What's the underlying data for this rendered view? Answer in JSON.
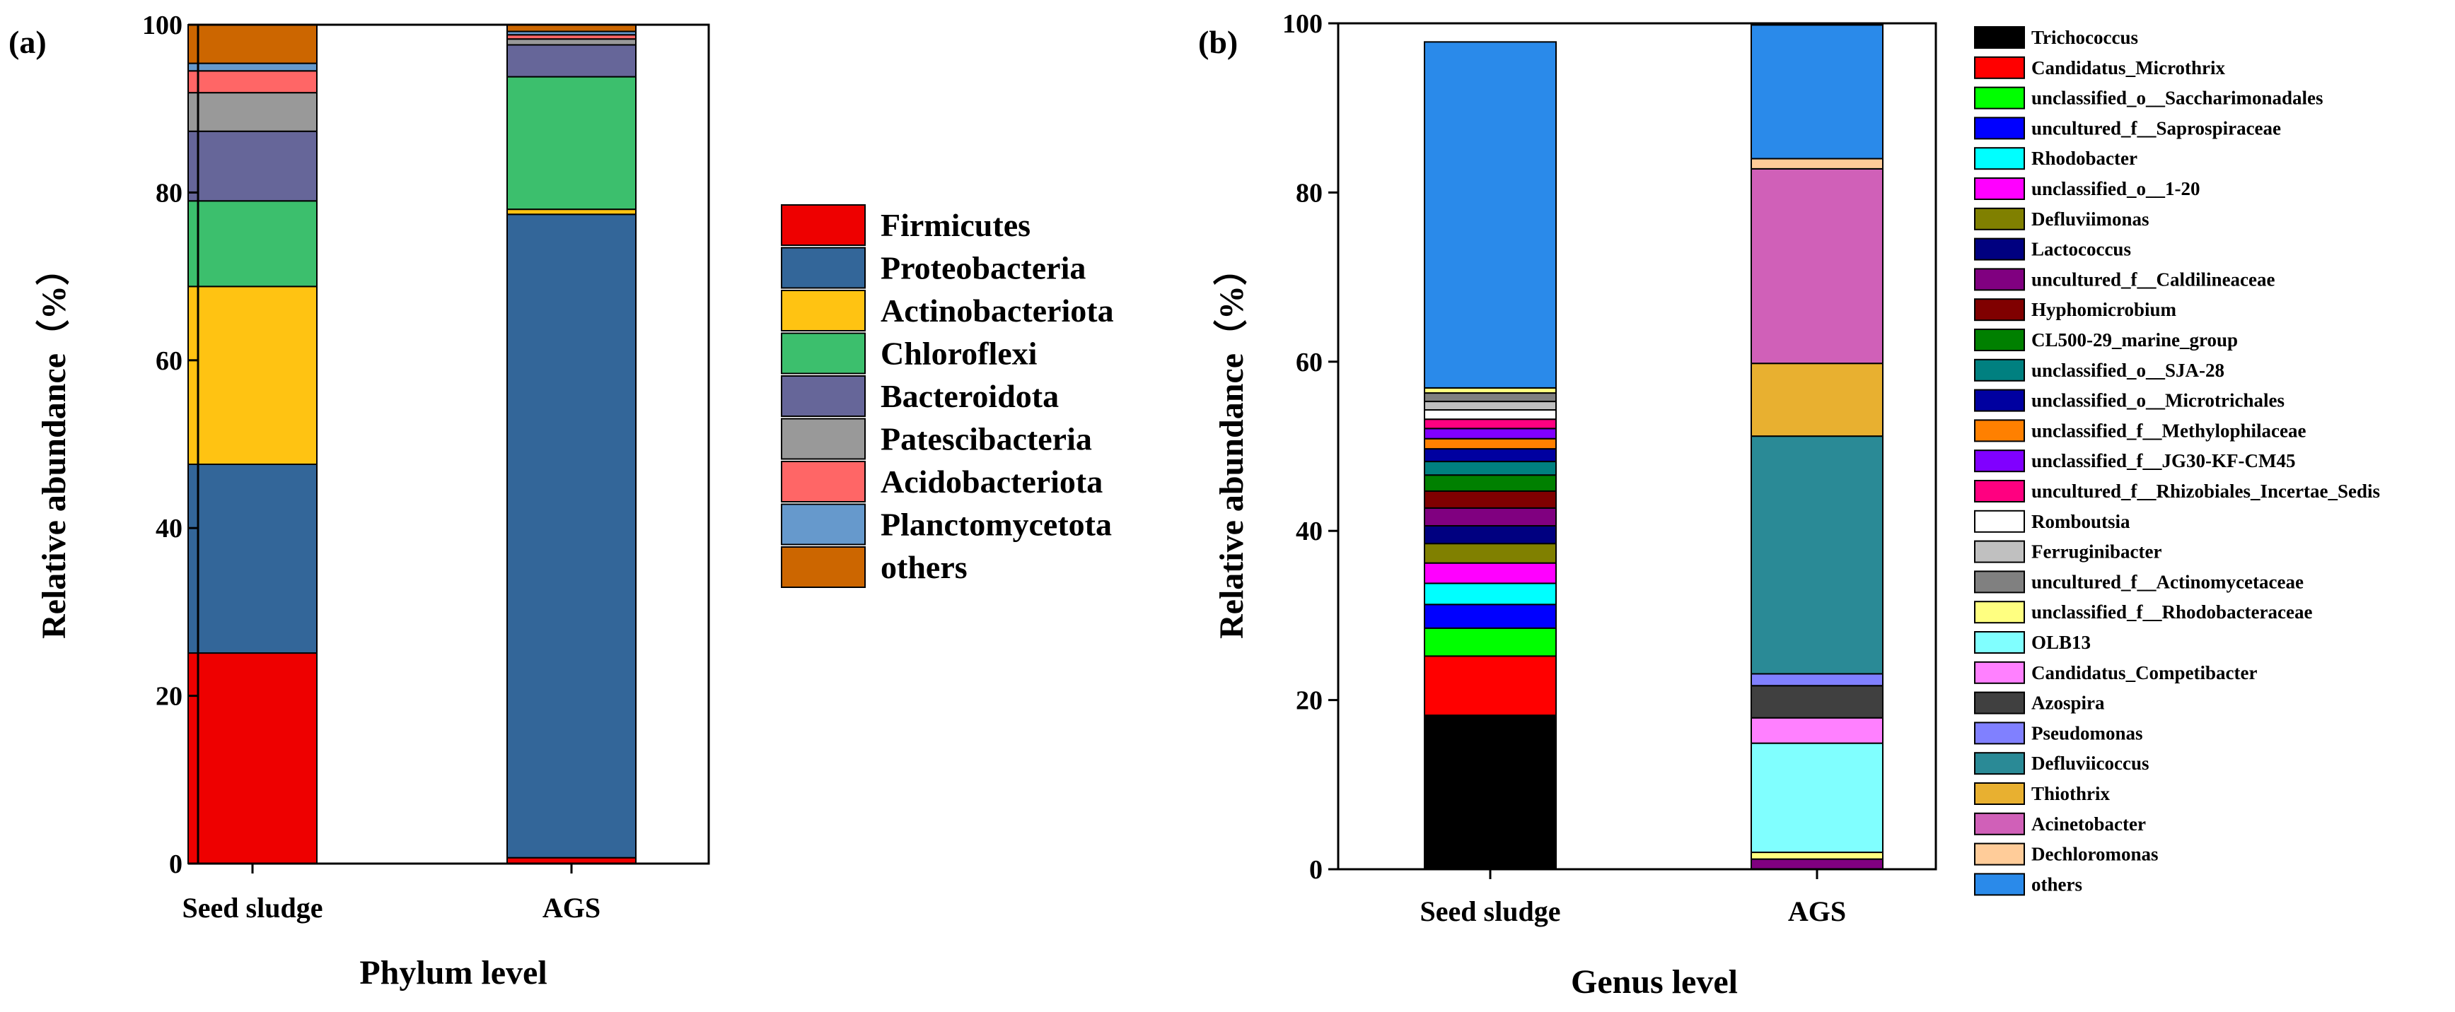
{
  "chart_data": [
    {
      "panel_label": "(a)",
      "type": "bar",
      "stacked": true,
      "categories": [
        "Seed sludge",
        "AGS"
      ],
      "xlabel": "Phylum level",
      "ylabel": "Relative abundance（%）",
      "ylim": [
        0,
        100
      ],
      "yticks": [
        "0",
        "20",
        "40",
        "60",
        "80",
        "100"
      ],
      "legend_position": "right",
      "series": [
        {
          "name": "Firmicutes",
          "color": "#EE0000",
          "values": [
            25.1,
            0.7
          ]
        },
        {
          "name": "Proteobacteria",
          "color": "#336699",
          "values": [
            22.5,
            76.7
          ]
        },
        {
          "name": "Actinobacteriota",
          "color": "#FFC312",
          "values": [
            21.2,
            0.6
          ]
        },
        {
          "name": "Chloroflexi",
          "color": "#3CBF6D",
          "values": [
            10.2,
            15.8
          ]
        },
        {
          "name": "Bacteroidota",
          "color": "#666699",
          "values": [
            8.3,
            3.8
          ]
        },
        {
          "name": "Patescibacteria",
          "color": "#999999",
          "values": [
            4.6,
            0.7
          ]
        },
        {
          "name": "Acidobacteriota",
          "color": "#FF6666",
          "values": [
            2.6,
            0.5
          ]
        },
        {
          "name": "Planctomycetota",
          "color": "#6699CC",
          "values": [
            0.9,
            0.4
          ]
        },
        {
          "name": "others",
          "color": "#CC6600",
          "values": [
            4.6,
            0.8
          ]
        }
      ]
    },
    {
      "panel_label": "(b)",
      "type": "bar",
      "stacked": true,
      "categories": [
        "Seed sludge",
        "AGS"
      ],
      "xlabel": "Genus level",
      "ylabel": "Relative abundance（%）",
      "ylim": [
        0,
        100
      ],
      "yticks": [
        "0",
        "20",
        "40",
        "60",
        "80",
        "100"
      ],
      "legend_position": "right",
      "series": [
        {
          "name": "Trichococcus",
          "color": "#000000",
          "values": [
            18.2,
            0
          ]
        },
        {
          "name": "Candidatus_Microthrix",
          "color": "#FF0000",
          "values": [
            7.0,
            0
          ]
        },
        {
          "name": "unclassified_o__Saccharimonadales",
          "color": "#00FF00",
          "values": [
            3.3,
            0
          ]
        },
        {
          "name": "uncultured_f__Saprospiraceae",
          "color": "#0000FF",
          "values": [
            2.8,
            0
          ]
        },
        {
          "name": "Rhodobacter",
          "color": "#00FFFF",
          "values": [
            2.5,
            0
          ]
        },
        {
          "name": "unclassified_o__1-20",
          "color": "#FF00FF",
          "values": [
            2.4,
            0
          ]
        },
        {
          "name": "Defluviimonas",
          "color": "#808000",
          "values": [
            2.3,
            0
          ]
        },
        {
          "name": "Lactococcus",
          "color": "#000080",
          "values": [
            2.1,
            0
          ]
        },
        {
          "name": "uncultured_f__Caldilineaceae",
          "color": "#800080",
          "values": [
            2.1,
            1.2
          ]
        },
        {
          "name": "Hyphomicrobium",
          "color": "#800000",
          "values": [
            2.0,
            0
          ]
        },
        {
          "name": "CL500-29_marine_group",
          "color": "#008000",
          "values": [
            1.9,
            0
          ]
        },
        {
          "name": "unclassified_o__SJA-28",
          "color": "#008080",
          "values": [
            1.6,
            0
          ]
        },
        {
          "name": "unclassified_o__Microtrichales",
          "color": "#0000A0",
          "values": [
            1.5,
            0
          ]
        },
        {
          "name": "unclassified_f__Methylophilaceae",
          "color": "#FF8000",
          "values": [
            1.2,
            0
          ]
        },
        {
          "name": "unclassified_f__JG30-KF-CM45",
          "color": "#8000FF",
          "values": [
            1.2,
            0
          ]
        },
        {
          "name": "uncultured_f__Rhizobiales_Incertae_Sedis",
          "color": "#FF0080",
          "values": [
            1.1,
            0
          ]
        },
        {
          "name": "Romboutsia",
          "color": "#FFFFFF",
          "values": [
            1.1,
            0
          ]
        },
        {
          "name": "Ferruginibacter",
          "color": "#C0C0C0",
          "values": [
            1.0,
            0
          ]
        },
        {
          "name": "uncultured_f__Actinomycetaceae",
          "color": "#808080",
          "values": [
            1.0,
            0
          ]
        },
        {
          "name": "unclassified_f__Rhodobacteraceae",
          "color": "#FFFF80",
          "values": [
            0.6,
            0.8
          ]
        },
        {
          "name": "OLB13",
          "color": "#80FFFF",
          "values": [
            0,
            12.9
          ]
        },
        {
          "name": "Candidatus_Competibacter",
          "color": "#FF80FF",
          "values": [
            0,
            3.0
          ]
        },
        {
          "name": "Azospira",
          "color": "#404040",
          "values": [
            0,
            3.8
          ]
        },
        {
          "name": "Pseudomonas",
          "color": "#8080FF",
          "values": [
            0,
            1.4
          ]
        },
        {
          "name": "Defluviicoccus",
          "color": "#2A8A96",
          "values": [
            0,
            28.1
          ]
        },
        {
          "name": "Thiothrix",
          "color": "#E8B030",
          "values": [
            0,
            8.6
          ]
        },
        {
          "name": "Acinetobacter",
          "color": "#D060B8",
          "values": [
            0,
            23.0
          ]
        },
        {
          "name": "Dechloromonas",
          "color": "#FFCC99",
          "values": [
            0,
            1.2
          ]
        },
        {
          "name": "others",
          "color": "#2A8AEA",
          "values": [
            40.9,
            15.8
          ]
        }
      ]
    }
  ]
}
